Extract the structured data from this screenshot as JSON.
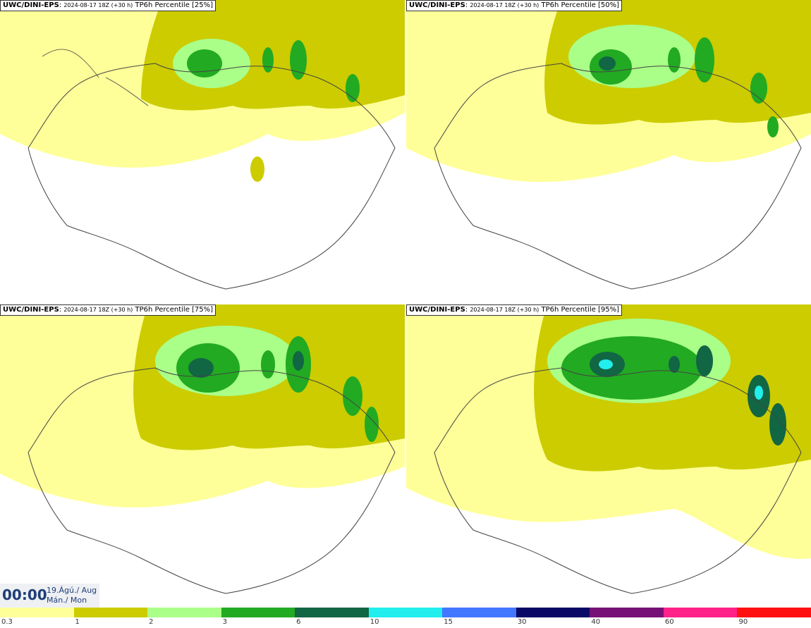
{
  "panels": [
    {
      "model": "UWC/DINI-EPS",
      "run": "2024-08-17 18Z (+30 h)",
      "field": "TP6h Percentile [25%]"
    },
    {
      "model": "UWC/DINI-EPS",
      "run": "2024-08-17 18Z (+30 h)",
      "field": "TP6h Percentile [50%]"
    },
    {
      "model": "UWC/DINI-EPS",
      "run": "2024-08-17 18Z (+30 h)",
      "field": "TP6h Percentile [75%]"
    },
    {
      "model": "UWC/DINI-EPS",
      "run": "2024-08-17 18Z (+30 h)",
      "field": "TP6h Percentile [95%]"
    }
  ],
  "valid_time": {
    "time": "00:00",
    "date_line1": "19.Ágú./ Aug",
    "date_line2": "Mán./ Mon"
  },
  "legend": {
    "colors": [
      "#ffff99",
      "#cccc00",
      "#aaff88",
      "#22aa22",
      "#116644",
      "#22eeee",
      "#4477ff",
      "#0a0a66",
      "#771177",
      "#ff2288",
      "#ff1111"
    ],
    "labels": [
      "0.3",
      "1",
      "2",
      "3",
      "6",
      "10",
      "15",
      "30",
      "40",
      "60",
      "90"
    ]
  }
}
